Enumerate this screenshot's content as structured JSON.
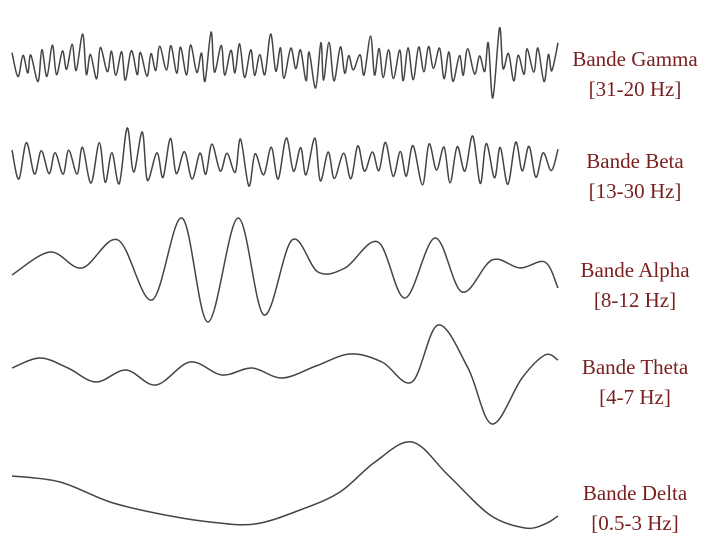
{
  "colors": {
    "wave": "#444444",
    "label": "#7a1f1f"
  },
  "bands": [
    {
      "name": "Bande Gamma",
      "range": "[31-20 Hz]"
    },
    {
      "name": "Bande Beta",
      "range": "[13-30 Hz]"
    },
    {
      "name": "Bande Alpha",
      "range": "[8-12 Hz]"
    },
    {
      "name": "Bande Theta",
      "range": "[4-7 Hz]"
    },
    {
      "name": "Bande Delta",
      "range": "[0.5-3 Hz]"
    }
  ]
}
